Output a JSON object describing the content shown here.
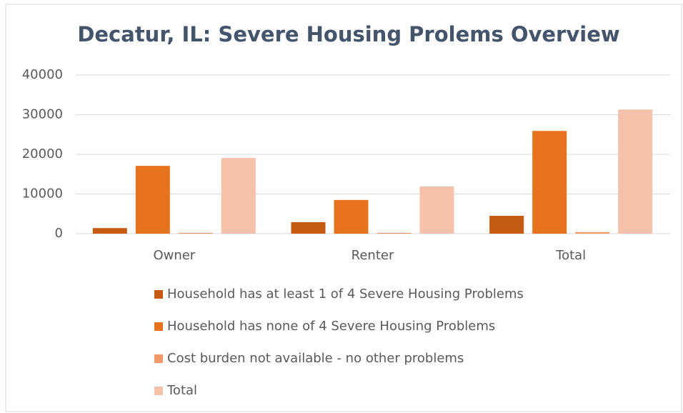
{
  "chart_data": {
    "type": "bar",
    "title": "Decatur, IL: Severe Housing Prolems Overview",
    "categories": [
      "Owner",
      "Renter",
      "Total"
    ],
    "series": [
      {
        "name": "Household has at least 1 of 4 Severe Housing Problems",
        "color": "#c55a11",
        "values": [
          1400,
          2900,
          4500
        ]
      },
      {
        "name": "Household has none of 4 Severe Housing Problems",
        "color": "#e8731f",
        "values": [
          17100,
          8500,
          25900
        ]
      },
      {
        "name": "Cost burden not available - no other problems",
        "color": "#f09a68",
        "values": [
          200,
          200,
          400
        ]
      },
      {
        "name": "Total",
        "color": "#f6c1aa",
        "values": [
          19100,
          11900,
          31300
        ]
      }
    ],
    "ylim": [
      0,
      40000
    ],
    "yticks": [
      0,
      10000,
      20000,
      30000,
      40000
    ],
    "grid": true,
    "legend": "bottom"
  }
}
